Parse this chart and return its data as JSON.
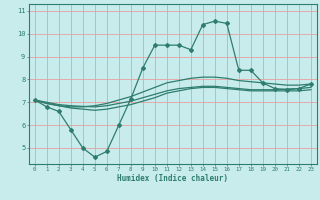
{
  "title": "",
  "xlabel": "Humidex (Indice chaleur)",
  "ylabel": "",
  "bg_color": "#c8ecec",
  "line_color": "#2e7d6e",
  "grid_color": "#e8a0a0",
  "xlim": [
    -0.5,
    23.5
  ],
  "ylim": [
    4.3,
    11.3
  ],
  "xticks": [
    0,
    1,
    2,
    3,
    4,
    5,
    6,
    7,
    8,
    9,
    10,
    11,
    12,
    13,
    14,
    15,
    16,
    17,
    18,
    19,
    20,
    21,
    22,
    23
  ],
  "yticks": [
    5,
    6,
    7,
    8,
    9,
    10,
    11
  ],
  "curve1_x": [
    0,
    1,
    2,
    3,
    4,
    5,
    6,
    7,
    8,
    9,
    10,
    11,
    12,
    13,
    14,
    15,
    16,
    17,
    18,
    19,
    20,
    21,
    22,
    23
  ],
  "curve1_y": [
    7.1,
    6.8,
    6.6,
    5.8,
    5.0,
    4.6,
    4.85,
    6.0,
    7.15,
    8.5,
    9.5,
    9.5,
    9.5,
    9.3,
    10.4,
    10.55,
    10.45,
    8.4,
    8.4,
    7.85,
    7.6,
    7.55,
    7.6,
    7.8
  ],
  "curve2_x": [
    0,
    1,
    2,
    3,
    4,
    5,
    6,
    7,
    8,
    9,
    10,
    11,
    12,
    13,
    14,
    15,
    16,
    17,
    18,
    19,
    20,
    21,
    22,
    23
  ],
  "curve2_y": [
    7.1,
    6.95,
    6.85,
    6.8,
    6.8,
    6.85,
    6.95,
    7.1,
    7.25,
    7.45,
    7.65,
    7.85,
    7.95,
    8.05,
    8.1,
    8.1,
    8.05,
    7.95,
    7.9,
    7.85,
    7.8,
    7.75,
    7.75,
    7.8
  ],
  "curve3_x": [
    0,
    1,
    2,
    3,
    4,
    5,
    6,
    7,
    8,
    9,
    10,
    11,
    12,
    13,
    14,
    15,
    16,
    17,
    18,
    19,
    20,
    21,
    22,
    23
  ],
  "curve3_y": [
    7.1,
    6.95,
    6.85,
    6.75,
    6.7,
    6.65,
    6.7,
    6.8,
    6.9,
    7.05,
    7.2,
    7.4,
    7.5,
    7.6,
    7.65,
    7.65,
    7.6,
    7.55,
    7.5,
    7.5,
    7.5,
    7.5,
    7.5,
    7.55
  ],
  "curve4_x": [
    0,
    1,
    2,
    3,
    4,
    5,
    6,
    7,
    8,
    9,
    10,
    11,
    12,
    13,
    14,
    15,
    16,
    17,
    18,
    19,
    20,
    21,
    22,
    23
  ],
  "curve4_y": [
    7.1,
    7.0,
    6.9,
    6.85,
    6.82,
    6.8,
    6.85,
    6.95,
    7.05,
    7.2,
    7.35,
    7.5,
    7.6,
    7.65,
    7.7,
    7.7,
    7.65,
    7.6,
    7.55,
    7.55,
    7.55,
    7.58,
    7.6,
    7.65
  ]
}
